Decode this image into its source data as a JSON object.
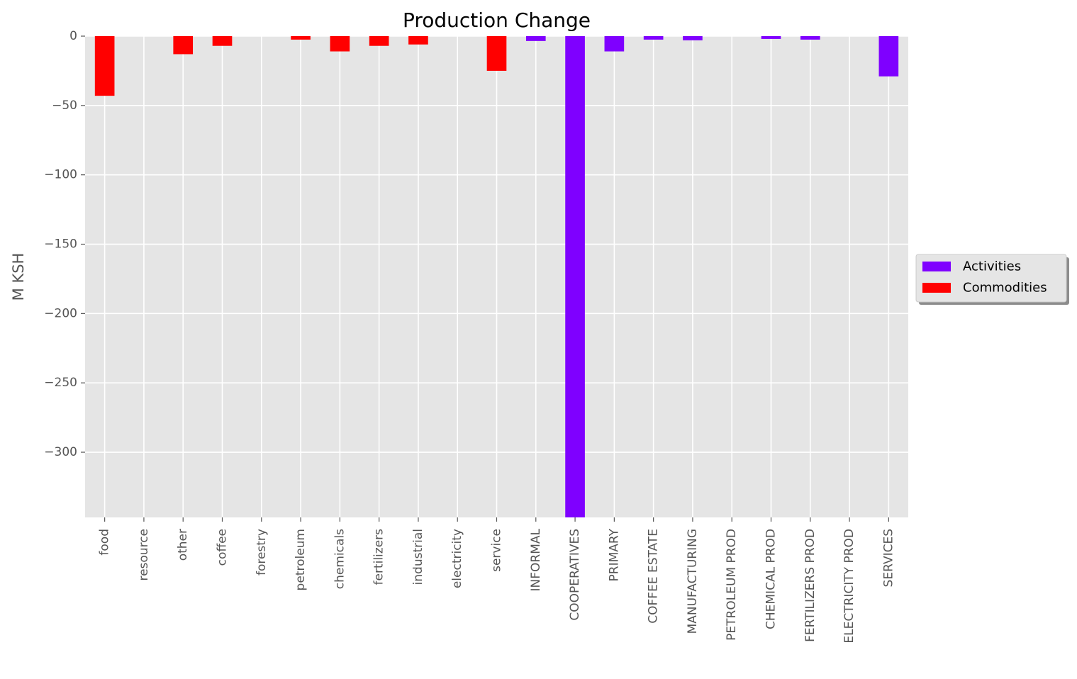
{
  "chart_data": {
    "type": "bar",
    "title": "Production Change",
    "xlabel": "",
    "ylabel": "M KSH",
    "ylim": [
      -347,
      0
    ],
    "yticks": [
      0,
      -50,
      -100,
      -150,
      -200,
      -250,
      -300
    ],
    "ytick_labels": [
      "0",
      "−50",
      "−100",
      "−150",
      "−200",
      "−250",
      "−300"
    ],
    "categories": [
      "food",
      "resource",
      "other",
      "coffee",
      "forestry",
      "petroleum",
      "chemicals",
      "fertilizers",
      "industrial",
      "electricity",
      "service",
      "INFORMAL",
      "COOPERATIVES",
      "PRIMARY",
      "COFFEE ESTATE",
      "MANUFACTURING",
      "PETROLEUM PROD",
      "CHEMICAL PROD",
      "FERTILIZERS PROD",
      "ELECTRICITY PROD",
      "SERVICES"
    ],
    "series": [
      {
        "name": "Activities",
        "color": "#7f00ff",
        "values": [
          null,
          null,
          null,
          null,
          null,
          null,
          null,
          null,
          null,
          null,
          null,
          -3.5,
          -347,
          -11,
          -2.5,
          -3,
          0,
          -2,
          -2.5,
          0,
          -29
        ]
      },
      {
        "name": "Commodities",
        "color": "#ff0000",
        "values": [
          -43,
          0,
          -13,
          -7,
          0,
          -2.5,
          -11,
          -7,
          -6,
          0,
          -25,
          null,
          null,
          null,
          null,
          null,
          null,
          null,
          null,
          null,
          null
        ]
      }
    ],
    "grid": true,
    "legend_position": "right"
  }
}
